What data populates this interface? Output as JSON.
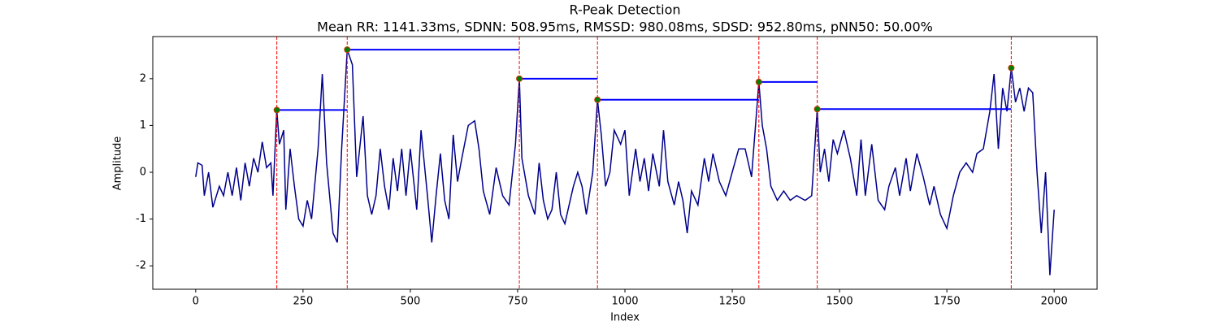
{
  "chart_data": {
    "type": "line",
    "title": "R-Peak Detection",
    "subtitle": "Mean RR: 1141.33ms, SDNN: 508.95ms, RMSSD: 980.08ms, SDSD: 952.80ms, pNN50: 50.00%",
    "x_label": "Index",
    "y_label": "Amplitude",
    "xlim": [
      -100,
      2100
    ],
    "ylim": [
      -2.5,
      2.9
    ],
    "xticks": [
      0,
      250,
      500,
      750,
      1000,
      1250,
      1500,
      1750,
      2000
    ],
    "yticks": [
      -2,
      -1,
      0,
      1,
      2
    ],
    "signal": {
      "color": "#00008b",
      "x": [
        0,
        5,
        15,
        20,
        30,
        40,
        55,
        65,
        75,
        85,
        95,
        105,
        115,
        125,
        135,
        145,
        155,
        165,
        175,
        180,
        189,
        195,
        205,
        210,
        220,
        230,
        240,
        250,
        260,
        270,
        285,
        295,
        305,
        320,
        330,
        340,
        353,
        365,
        375,
        390,
        400,
        410,
        420,
        430,
        440,
        450,
        460,
        470,
        480,
        490,
        500,
        515,
        525,
        540,
        550,
        560,
        570,
        580,
        590,
        600,
        610,
        620,
        635,
        650,
        660,
        670,
        685,
        700,
        715,
        730,
        745,
        754,
        760,
        775,
        790,
        800,
        810,
        820,
        830,
        840,
        850,
        860,
        870,
        880,
        890,
        900,
        910,
        925,
        936,
        945,
        955,
        965,
        975,
        990,
        1000,
        1010,
        1025,
        1035,
        1045,
        1055,
        1065,
        1080,
        1090,
        1100,
        1115,
        1125,
        1135,
        1145,
        1155,
        1170,
        1185,
        1195,
        1205,
        1220,
        1235,
        1250,
        1265,
        1280,
        1295,
        1312,
        1320,
        1330,
        1340,
        1355,
        1370,
        1385,
        1400,
        1420,
        1435,
        1448,
        1455,
        1465,
        1475,
        1485,
        1495,
        1510,
        1525,
        1540,
        1550,
        1560,
        1575,
        1590,
        1605,
        1615,
        1630,
        1640,
        1655,
        1665,
        1680,
        1695,
        1710,
        1720,
        1735,
        1750,
        1765,
        1780,
        1795,
        1810,
        1820,
        1835,
        1850,
        1860,
        1870,
        1880,
        1890,
        1900,
        1910,
        1920,
        1930,
        1940,
        1950,
        1960,
        1970,
        1980,
        1990,
        2000
      ],
      "values": [
        -0.1,
        0.2,
        0.15,
        -0.5,
        0.0,
        -0.75,
        -0.3,
        -0.5,
        0.0,
        -0.5,
        0.1,
        -0.6,
        0.2,
        -0.3,
        0.3,
        0.0,
        0.65,
        0.1,
        0.2,
        -0.5,
        1.33,
        0.6,
        0.9,
        -0.8,
        0.5,
        -0.3,
        -1.0,
        -1.15,
        -0.6,
        -1.0,
        0.5,
        2.1,
        0.2,
        -1.3,
        -1.5,
        0.5,
        2.62,
        2.3,
        -0.1,
        1.2,
        -0.5,
        -0.9,
        -0.5,
        0.5,
        -0.3,
        -0.8,
        0.3,
        -0.4,
        0.5,
        -0.5,
        0.5,
        -0.8,
        0.9,
        -0.5,
        -1.5,
        -0.5,
        0.4,
        -0.6,
        -1.0,
        0.8,
        -0.2,
        0.3,
        1.0,
        1.1,
        0.5,
        -0.4,
        -0.9,
        0.1,
        -0.5,
        -0.7,
        0.6,
        2.0,
        0.3,
        -0.5,
        -0.9,
        0.2,
        -0.6,
        -1.0,
        -0.8,
        0.0,
        -0.9,
        -1.1,
        -0.7,
        -0.3,
        0.0,
        -0.3,
        -0.9,
        0.0,
        1.55,
        0.8,
        -0.3,
        0.0,
        0.9,
        0.6,
        0.9,
        -0.5,
        0.5,
        -0.2,
        0.3,
        -0.4,
        0.4,
        -0.3,
        0.9,
        -0.2,
        -0.7,
        -0.2,
        -0.6,
        -1.3,
        -0.4,
        -0.7,
        0.3,
        -0.2,
        0.4,
        -0.2,
        -0.5,
        0.0,
        0.5,
        0.5,
        -0.1,
        1.93,
        1.0,
        0.5,
        -0.3,
        -0.6,
        -0.4,
        -0.6,
        -0.5,
        -0.6,
        -0.5,
        1.35,
        0.0,
        0.5,
        -0.2,
        0.7,
        0.4,
        0.9,
        0.3,
        -0.5,
        0.7,
        -0.5,
        0.6,
        -0.6,
        -0.8,
        -0.3,
        0.1,
        -0.5,
        0.3,
        -0.4,
        0.4,
        -0.1,
        -0.7,
        -0.3,
        -0.9,
        -1.2,
        -0.5,
        0.0,
        0.2,
        0.0,
        0.4,
        0.5,
        1.3,
        2.1,
        0.5,
        1.8,
        1.3,
        2.23,
        1.5,
        1.8,
        1.3,
        1.8,
        1.7,
        0.0,
        -1.3,
        0.0,
        -2.2,
        -0.8
      ]
    },
    "peaks": {
      "color": "#008000",
      "edge_color": "#cc3300",
      "line_color": "#ff0000",
      "rr_color": "#0000ff",
      "x": [
        189,
        353,
        754,
        936,
        1312,
        1448,
        1900
      ],
      "values": [
        1.33,
        2.62,
        2.0,
        1.55,
        1.93,
        1.35,
        2.23
      ]
    }
  }
}
